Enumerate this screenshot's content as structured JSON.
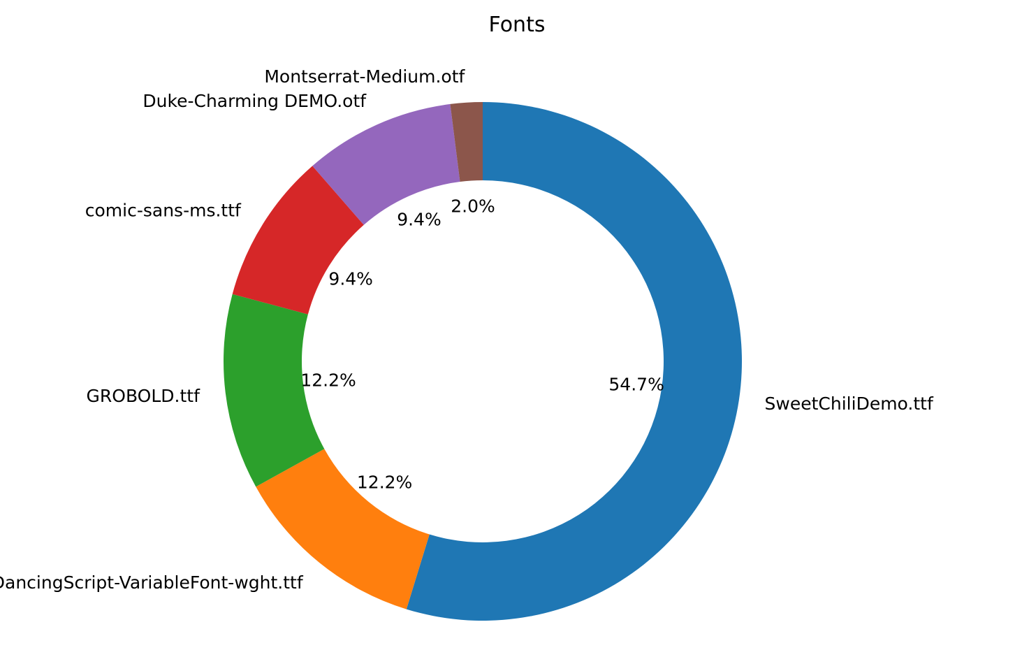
{
  "chart_data": {
    "type": "pie",
    "title": "Fonts",
    "donut": true,
    "start_angle_deg": 90,
    "direction": "clockwise",
    "slices": [
      {
        "label": "SweetChiliDemo.ttf",
        "value": 54.7,
        "pct_label": "54.7%",
        "color": "#1f77b4"
      },
      {
        "label": "DancingScript-VariableFont-wght.ttf",
        "value": 12.2,
        "pct_label": "12.2%",
        "color": "#ff7f0e"
      },
      {
        "label": "GROBOLD.ttf",
        "value": 12.2,
        "pct_label": "12.2%",
        "color": "#2ca02c"
      },
      {
        "label": "comic-sans-ms.ttf",
        "value": 9.4,
        "pct_label": "9.4%",
        "color": "#d62728"
      },
      {
        "label": "Duke-Charming DEMO.otf",
        "value": 9.4,
        "pct_label": "9.4%",
        "color": "#9467bd"
      },
      {
        "label": "Montserrat-Medium.otf",
        "value": 2.0,
        "pct_label": "2.0%",
        "color": "#8c564b"
      }
    ]
  }
}
